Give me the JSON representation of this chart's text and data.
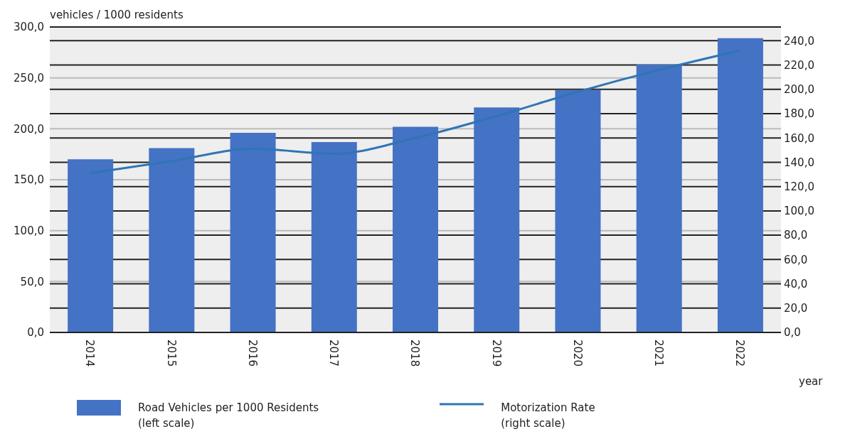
{
  "chart_data": {
    "type": "bar",
    "ylabel": "vehicles / 1000 residents",
    "xlabel": "year",
    "categories": [
      "2014",
      "2015",
      "2016",
      "2017",
      "2018",
      "2019",
      "2020",
      "2021",
      "2022"
    ],
    "series": [
      {
        "name": "Road Vehicles per 1000 Residents\n(left scale)",
        "color": "#4472c4",
        "values": [
          170,
          181,
          196,
          187,
          202,
          221,
          238,
          263,
          289
        ]
      },
      {
        "name": "Motorization Rate\n(right scale)",
        "type": "line",
        "axis": "y2",
        "color": "#2e75b6",
        "values": [
          131,
          141,
          151,
          147,
          160,
          178,
          198,
          216,
          232
        ]
      }
    ],
    "ylim": [
      0,
      300
    ],
    "yticks": [
      {
        "value": 0,
        "label": "0,0"
      },
      {
        "value": 50,
        "label": "50,0"
      },
      {
        "value": 100,
        "label": "100,0"
      },
      {
        "value": 150,
        "label": "150,0"
      },
      {
        "value": 200,
        "label": "200,0"
      },
      {
        "value": 250,
        "label": "250,0"
      },
      {
        "value": 300,
        "label": "300,0"
      }
    ],
    "y2lim": [
      0,
      251.3
    ],
    "y2ticks": [
      {
        "value": 0,
        "label": "0,0"
      },
      {
        "value": 20,
        "label": "20,0"
      },
      {
        "value": 40,
        "label": "40,0"
      },
      {
        "value": 60,
        "label": "60,0"
      },
      {
        "value": 80,
        "label": "80,0"
      },
      {
        "value": 100,
        "label": "100,0"
      },
      {
        "value": 120,
        "label": "120,0"
      },
      {
        "value": 140,
        "label": "140,0"
      },
      {
        "value": 160,
        "label": "160,0"
      },
      {
        "value": 180,
        "label": "180,0"
      },
      {
        "value": 200,
        "label": "200,0"
      },
      {
        "value": 220,
        "label": "220,0"
      },
      {
        "value": 240,
        "label": "240,0"
      }
    ],
    "grid": true,
    "legend": "bottom",
    "marker": "none",
    "line_style": "solid"
  }
}
